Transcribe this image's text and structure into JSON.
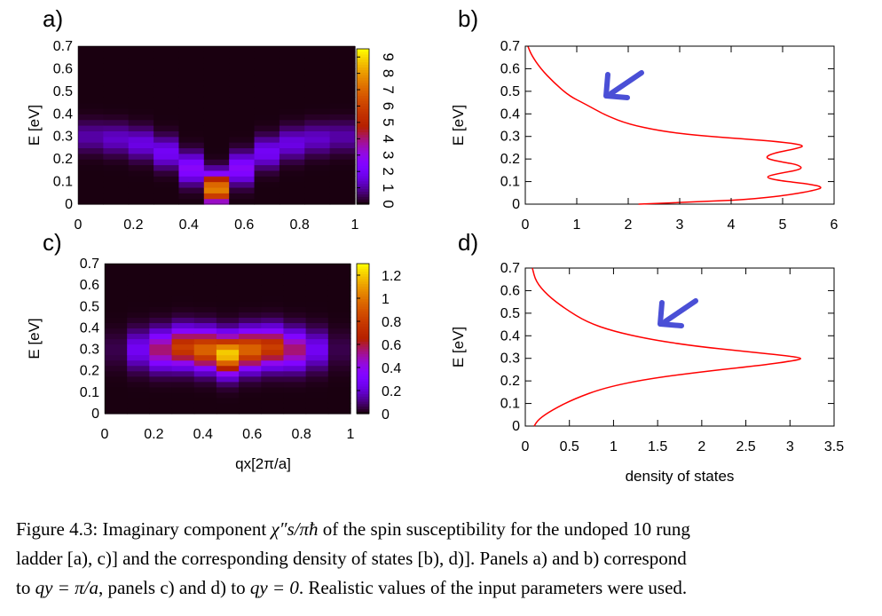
{
  "chart_data": [
    {
      "panel_label": "a)",
      "type": "heatmap",
      "xlabel": "",
      "ylabel": "E [eV]",
      "xticks": [
        "0",
        "0.2",
        "0.4",
        "0.6",
        "0.8",
        "1"
      ],
      "yticks": [
        "0",
        "0.1",
        "0.2",
        "0.3",
        "0.4",
        "0.5",
        "0.6",
        "0.7"
      ],
      "xlim": [
        0,
        1
      ],
      "ylim": [
        0,
        0.7
      ],
      "colorbar_ticks": [
        "0",
        "1",
        "2",
        "3",
        "4",
        "5",
        "6",
        "7",
        "8",
        "9"
      ],
      "colorbar_range": [
        0,
        9.5
      ],
      "x": [
        0,
        0.1,
        0.2,
        0.3,
        0.4,
        0.5,
        0.6,
        0.7,
        0.8,
        0.9,
        1.0
      ],
      "dispersion": [
        0.3,
        0.29,
        0.27,
        0.23,
        0.16,
        0.07,
        0.16,
        0.23,
        0.27,
        0.29,
        0.3
      ],
      "amplitude": [
        1.0,
        1.3,
        1.6,
        1.9,
        2.6,
        7.5,
        2.6,
        1.9,
        1.6,
        1.3,
        1.0
      ],
      "peak_width": 0.045
    },
    {
      "panel_label": "b)",
      "type": "line",
      "xlabel": "",
      "ylabel": "E [eV]",
      "xticks": [
        "0",
        "1",
        "2",
        "3",
        "4",
        "5",
        "6"
      ],
      "yticks": [
        "0",
        "0.1",
        "0.2",
        "0.3",
        "0.4",
        "0.5",
        "0.6",
        "0.7"
      ],
      "xlim": [
        0,
        6
      ],
      "ylim": [
        0,
        0.7
      ],
      "series": [
        {
          "color": "#ff0000",
          "points": [
            [
              2.2,
              0.0
            ],
            [
              3.3,
              0.01
            ],
            [
              4.3,
              0.02
            ],
            [
              5.1,
              0.04
            ],
            [
              5.6,
              0.06
            ],
            [
              5.8,
              0.075
            ],
            [
              5.5,
              0.09
            ],
            [
              4.9,
              0.105
            ],
            [
              4.65,
              0.12
            ],
            [
              4.9,
              0.135
            ],
            [
              5.4,
              0.155
            ],
            [
              5.3,
              0.175
            ],
            [
              4.9,
              0.19
            ],
            [
              4.65,
              0.205
            ],
            [
              4.8,
              0.225
            ],
            [
              5.25,
              0.245
            ],
            [
              5.45,
              0.26
            ],
            [
              5.0,
              0.275
            ],
            [
              4.2,
              0.29
            ],
            [
              3.3,
              0.305
            ],
            [
              2.6,
              0.325
            ],
            [
              2.0,
              0.355
            ],
            [
              1.6,
              0.39
            ],
            [
              1.35,
              0.42
            ],
            [
              1.15,
              0.445
            ],
            [
              0.85,
              0.48
            ],
            [
              0.55,
              0.54
            ],
            [
              0.3,
              0.6
            ],
            [
              0.12,
              0.66
            ],
            [
              0.05,
              0.7
            ]
          ]
        }
      ]
    },
    {
      "panel_label": "c)",
      "type": "heatmap",
      "xlabel": "qx[2π/a]",
      "ylabel": "E [eV]",
      "xticks": [
        "0",
        "0.2",
        "0.4",
        "0.6",
        "0.8",
        "1"
      ],
      "yticks": [
        "0",
        "0.1",
        "0.2",
        "0.3",
        "0.4",
        "0.5",
        "0.6",
        "0.7"
      ],
      "xlim": [
        0,
        1
      ],
      "ylim": [
        0,
        0.7
      ],
      "colorbar_ticks": [
        "0",
        "0.2",
        "0.4",
        "0.6",
        "0.8",
        "1",
        "1.2"
      ],
      "colorbar_range": [
        0,
        1.3
      ],
      "x": [
        0,
        0.1,
        0.2,
        0.3,
        0.4,
        0.5,
        0.6,
        0.7,
        0.8,
        0.9,
        1.0
      ],
      "dispersion": [
        0.3,
        0.3,
        0.3,
        0.31,
        0.3,
        0.28,
        0.3,
        0.31,
        0.3,
        0.3,
        0.3
      ],
      "amplitude": [
        0.05,
        0.25,
        0.55,
        0.8,
        0.95,
        1.2,
        0.95,
        0.8,
        0.55,
        0.25,
        0.05
      ],
      "peak_width": 0.06
    },
    {
      "panel_label": "d)",
      "type": "line",
      "xlabel": "density of states",
      "ylabel": "E [eV]",
      "xticks": [
        "0",
        "0.5",
        "1",
        "1.5",
        "2",
        "2.5",
        "3",
        "3.5"
      ],
      "yticks": [
        "0",
        "0.1",
        "0.2",
        "0.3",
        "0.4",
        "0.5",
        "0.6",
        "0.7"
      ],
      "xlim": [
        0,
        3.5
      ],
      "ylim": [
        0,
        0.7
      ],
      "series": [
        {
          "color": "#ff0000",
          "points": [
            [
              0.1,
              0.0
            ],
            [
              0.15,
              0.03
            ],
            [
              0.3,
              0.07
            ],
            [
              0.55,
              0.12
            ],
            [
              0.9,
              0.17
            ],
            [
              1.4,
              0.21
            ],
            [
              2.1,
              0.245
            ],
            [
              2.7,
              0.27
            ],
            [
              3.05,
              0.29
            ],
            [
              3.15,
              0.3
            ],
            [
              3.0,
              0.31
            ],
            [
              2.5,
              0.33
            ],
            [
              1.9,
              0.355
            ],
            [
              1.4,
              0.385
            ],
            [
              1.0,
              0.42
            ],
            [
              0.7,
              0.46
            ],
            [
              0.45,
              0.52
            ],
            [
              0.25,
              0.58
            ],
            [
              0.12,
              0.64
            ],
            [
              0.08,
              0.7
            ]
          ]
        }
      ]
    }
  ],
  "caption": {
    "line1_a": "Figure 4.3: Imaginary component ",
    "line1_b": " of the spin susceptibility for the undoped 10 rung",
    "line2": "ladder [a), c)] and the corresponding density of states [b), d)]. Panels a) and b) correspond",
    "line3_a": "to ",
    "line3_b": ", panels c) and d) to ",
    "line3_c": ". Realistic values of the input parameters were used.",
    "chi": "χ″s/πħ",
    "qy1": "qy = π/a",
    "qy0": "qy = 0"
  },
  "annotation_color": "#4a4fd6"
}
